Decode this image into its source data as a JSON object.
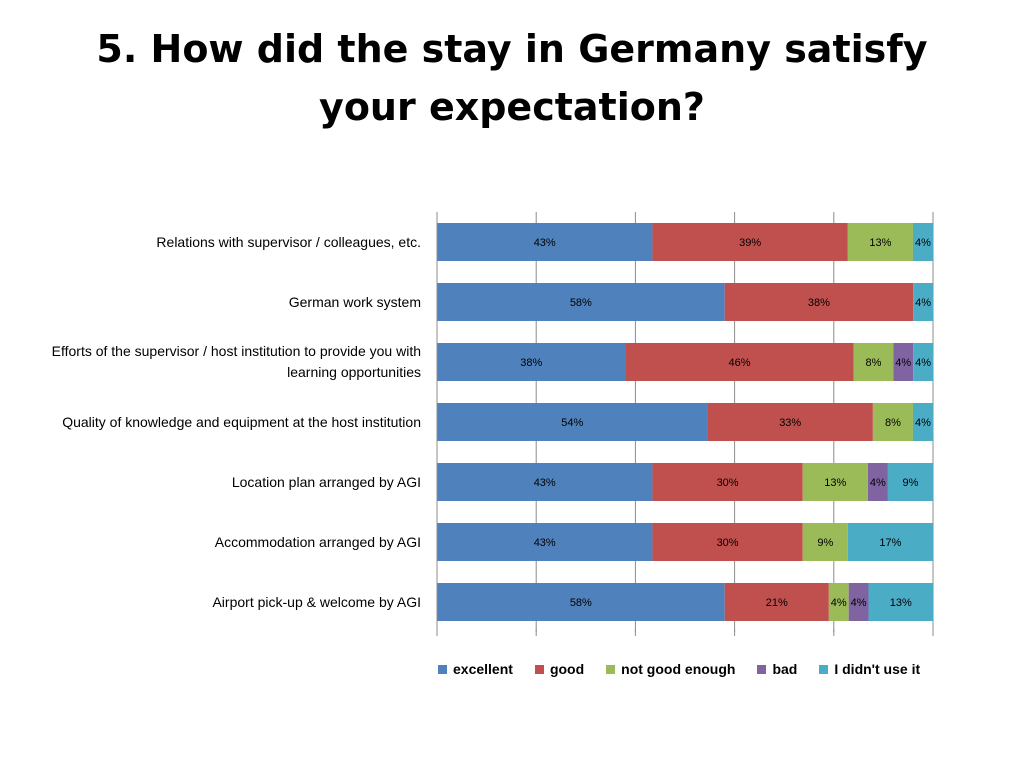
{
  "title_lines": [
    "5. How did the stay in Germany satisfy",
    "your expectation?"
  ],
  "chart_data": {
    "type": "bar",
    "orientation": "horizontal",
    "stacked": "percent",
    "categories": [
      "Relations with supervisor / colleagues, etc.",
      "German work system",
      "Efforts of the supervisor / host institution to provide you with learning opportunities",
      "Quality of knowledge and equipment at the host institution",
      "Location plan arranged by AGI",
      "Accommodation arranged by AGI",
      "Airport pick-up & welcome by AGI"
    ],
    "series": [
      {
        "name": "excellent",
        "color": "#4F81BD",
        "values": [
          43,
          58,
          38,
          54,
          43,
          43,
          58
        ]
      },
      {
        "name": "good",
        "color": "#C0504D",
        "values": [
          39,
          38,
          46,
          33,
          30,
          30,
          21
        ]
      },
      {
        "name": "not good enough",
        "color": "#9BBB59",
        "values": [
          13,
          0,
          8,
          8,
          13,
          9,
          4
        ]
      },
      {
        "name": "bad",
        "color": "#8064A2",
        "values": [
          0,
          0,
          4,
          0,
          4,
          0,
          4
        ]
      },
      {
        "name": "I didn't use it",
        "color": "#4BACC6",
        "values": [
          4,
          4,
          4,
          4,
          9,
          17,
          13
        ]
      }
    ],
    "value_suffix": "%",
    "xlim": [
      0,
      100
    ],
    "grid": true,
    "legend_position": "bottom"
  }
}
